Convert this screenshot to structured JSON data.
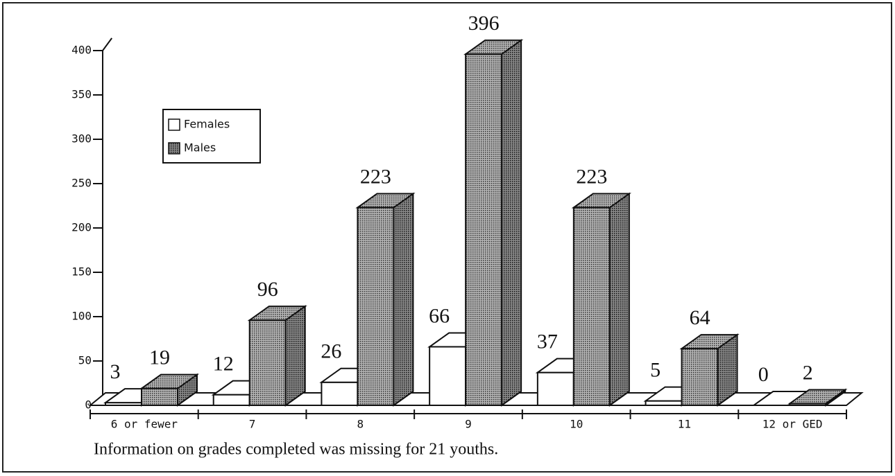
{
  "chart_data": {
    "type": "bar3d",
    "categories": [
      "6 or fewer",
      "7",
      "8",
      "9",
      "10",
      "11",
      "12 or GED"
    ],
    "series": [
      {
        "name": "Females",
        "color": "#ffffff",
        "values": [
          3,
          12,
          26,
          66,
          37,
          5,
          0
        ]
      },
      {
        "name": "Males",
        "color": "#9a9a9a",
        "values": [
          19,
          96,
          223,
          396,
          223,
          64,
          2
        ]
      }
    ],
    "ylim": [
      0,
      400
    ],
    "yticks": [
      0,
      50,
      100,
      150,
      200,
      250,
      300,
      350,
      400
    ],
    "legend": "upper left",
    "note": "Information on grades completed was missing for 21 youths."
  }
}
